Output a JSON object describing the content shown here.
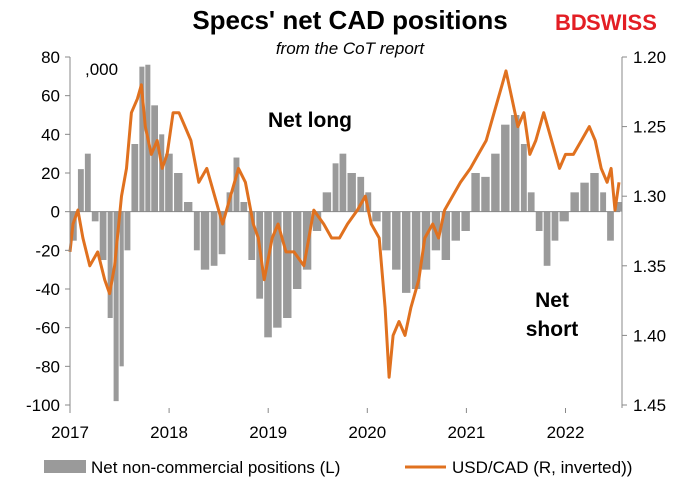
{
  "chart_data": {
    "type": "bar+line",
    "title": "Specs' net CAD positions",
    "subtitle": "from the CoT report",
    "left_axis_unit": ",000",
    "left_axis": {
      "ylim": [
        -100,
        80
      ],
      "ticks": [
        80,
        60,
        40,
        20,
        0,
        -20,
        -40,
        -60,
        -80,
        -100
      ]
    },
    "right_axis": {
      "ylim": [
        1.2,
        1.45
      ],
      "inverted": true,
      "ticks": [
        "1.20",
        "1.25",
        "1.30",
        "1.35",
        "1.40",
        "1.45"
      ]
    },
    "x_axis": {
      "range": [
        2017.0,
        2022.55
      ],
      "tick_labels": [
        "2017",
        "2018",
        "2019",
        "2020",
        "2021",
        "2022"
      ]
    },
    "grid": false,
    "annotations": [
      {
        "id": "net_long",
        "lines": [
          "Net long"
        ]
      },
      {
        "id": "net_short",
        "lines": [
          "Net",
          "short"
        ]
      }
    ],
    "legend": {
      "placement": "bottom"
    },
    "series": [
      {
        "name": "Net non-commercial positions (L)",
        "kind": "bar",
        "axis": "left",
        "color": "#9a9a9a",
        "points": [
          [
            2017.0,
            -15
          ],
          [
            2017.08,
            22
          ],
          [
            2017.15,
            30
          ],
          [
            2017.22,
            -5
          ],
          [
            2017.3,
            -25
          ],
          [
            2017.38,
            -55
          ],
          [
            2017.44,
            -98
          ],
          [
            2017.5,
            -80
          ],
          [
            2017.55,
            -20
          ],
          [
            2017.62,
            35
          ],
          [
            2017.7,
            75
          ],
          [
            2017.76,
            76
          ],
          [
            2017.82,
            55
          ],
          [
            2017.9,
            40
          ],
          [
            2017.96,
            30
          ],
          [
            2018.05,
            20
          ],
          [
            2018.15,
            5
          ],
          [
            2018.25,
            -20
          ],
          [
            2018.32,
            -30
          ],
          [
            2018.42,
            -28
          ],
          [
            2018.5,
            -22
          ],
          [
            2018.58,
            10
          ],
          [
            2018.65,
            28
          ],
          [
            2018.72,
            5
          ],
          [
            2018.8,
            -25
          ],
          [
            2018.88,
            -45
          ],
          [
            2018.96,
            -65
          ],
          [
            2019.05,
            -60
          ],
          [
            2019.15,
            -55
          ],
          [
            2019.25,
            -40
          ],
          [
            2019.35,
            -30
          ],
          [
            2019.45,
            -10
          ],
          [
            2019.55,
            10
          ],
          [
            2019.65,
            25
          ],
          [
            2019.72,
            30
          ],
          [
            2019.8,
            20
          ],
          [
            2019.9,
            18
          ],
          [
            2019.98,
            10
          ],
          [
            2020.05,
            -5
          ],
          [
            2020.15,
            -20
          ],
          [
            2020.25,
            -30
          ],
          [
            2020.35,
            -42
          ],
          [
            2020.45,
            -40
          ],
          [
            2020.55,
            -30
          ],
          [
            2020.65,
            -20
          ],
          [
            2020.75,
            -25
          ],
          [
            2020.85,
            -15
          ],
          [
            2020.95,
            -10
          ],
          [
            2021.05,
            20
          ],
          [
            2021.15,
            18
          ],
          [
            2021.25,
            30
          ],
          [
            2021.35,
            45
          ],
          [
            2021.45,
            50
          ],
          [
            2021.55,
            35
          ],
          [
            2021.62,
            10
          ],
          [
            2021.7,
            -10
          ],
          [
            2021.78,
            -28
          ],
          [
            2021.86,
            -15
          ],
          [
            2021.94,
            -5
          ],
          [
            2022.05,
            10
          ],
          [
            2022.15,
            15
          ],
          [
            2022.25,
            20
          ],
          [
            2022.35,
            10
          ],
          [
            2022.42,
            -15
          ],
          [
            2022.5,
            5
          ]
        ]
      },
      {
        "name": "USD/CAD (R, inverted))",
        "kind": "line",
        "axis": "right",
        "color": "#e0711f",
        "points": [
          [
            2017.0,
            1.34
          ],
          [
            2017.03,
            1.32
          ],
          [
            2017.08,
            1.31
          ],
          [
            2017.13,
            1.33
          ],
          [
            2017.2,
            1.35
          ],
          [
            2017.28,
            1.34
          ],
          [
            2017.35,
            1.36
          ],
          [
            2017.4,
            1.37
          ],
          [
            2017.45,
            1.35
          ],
          [
            2017.52,
            1.3
          ],
          [
            2017.57,
            1.28
          ],
          [
            2017.62,
            1.24
          ],
          [
            2017.68,
            1.23
          ],
          [
            2017.72,
            1.22
          ],
          [
            2017.76,
            1.25
          ],
          [
            2017.82,
            1.27
          ],
          [
            2017.88,
            1.26
          ],
          [
            2017.93,
            1.28
          ],
          [
            2017.98,
            1.27
          ],
          [
            2018.04,
            1.24
          ],
          [
            2018.1,
            1.24
          ],
          [
            2018.16,
            1.25
          ],
          [
            2018.22,
            1.26
          ],
          [
            2018.3,
            1.29
          ],
          [
            2018.38,
            1.28
          ],
          [
            2018.46,
            1.3
          ],
          [
            2018.54,
            1.32
          ],
          [
            2018.62,
            1.3
          ],
          [
            2018.7,
            1.28
          ],
          [
            2018.77,
            1.29
          ],
          [
            2018.85,
            1.32
          ],
          [
            2018.9,
            1.33
          ],
          [
            2018.96,
            1.36
          ],
          [
            2019.04,
            1.33
          ],
          [
            2019.1,
            1.32
          ],
          [
            2019.18,
            1.34
          ],
          [
            2019.26,
            1.34
          ],
          [
            2019.36,
            1.35
          ],
          [
            2019.46,
            1.31
          ],
          [
            2019.56,
            1.32
          ],
          [
            2019.64,
            1.33
          ],
          [
            2019.72,
            1.33
          ],
          [
            2019.8,
            1.32
          ],
          [
            2019.9,
            1.31
          ],
          [
            2019.98,
            1.3
          ],
          [
            2020.04,
            1.32
          ],
          [
            2020.12,
            1.33
          ],
          [
            2020.18,
            1.38
          ],
          [
            2020.22,
            1.43
          ],
          [
            2020.26,
            1.4
          ],
          [
            2020.32,
            1.39
          ],
          [
            2020.38,
            1.4
          ],
          [
            2020.44,
            1.38
          ],
          [
            2020.52,
            1.36
          ],
          [
            2020.58,
            1.33
          ],
          [
            2020.66,
            1.32
          ],
          [
            2020.72,
            1.33
          ],
          [
            2020.78,
            1.31
          ],
          [
            2020.86,
            1.3
          ],
          [
            2020.94,
            1.29
          ],
          [
            2021.04,
            1.28
          ],
          [
            2021.12,
            1.27
          ],
          [
            2021.2,
            1.26
          ],
          [
            2021.28,
            1.24
          ],
          [
            2021.36,
            1.22
          ],
          [
            2021.4,
            1.21
          ],
          [
            2021.46,
            1.23
          ],
          [
            2021.52,
            1.25
          ],
          [
            2021.58,
            1.24
          ],
          [
            2021.64,
            1.27
          ],
          [
            2021.7,
            1.26
          ],
          [
            2021.78,
            1.24
          ],
          [
            2021.86,
            1.26
          ],
          [
            2021.94,
            1.28
          ],
          [
            2022.0,
            1.27
          ],
          [
            2022.08,
            1.27
          ],
          [
            2022.16,
            1.26
          ],
          [
            2022.24,
            1.25
          ],
          [
            2022.3,
            1.26
          ],
          [
            2022.36,
            1.28
          ],
          [
            2022.42,
            1.29
          ],
          [
            2022.46,
            1.28
          ],
          [
            2022.5,
            1.31
          ],
          [
            2022.54,
            1.29
          ]
        ]
      }
    ]
  },
  "logo": {
    "part1": "BD",
    "part2": "SWISS"
  }
}
